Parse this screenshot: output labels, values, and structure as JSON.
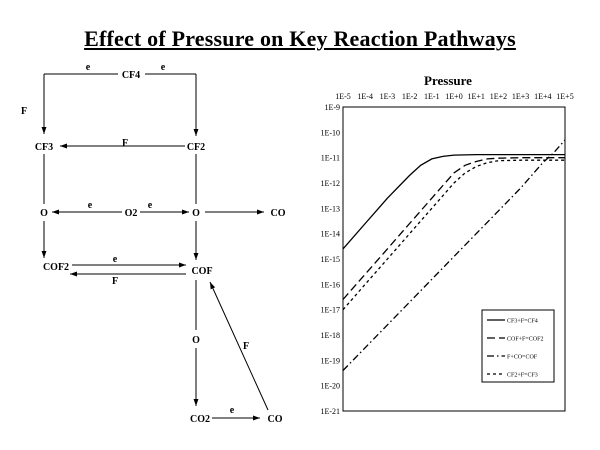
{
  "title": "Effect of Pressure on Key Reaction Pathways",
  "diagram": {
    "nodes": {
      "cf4": "CF4",
      "cf3": "CF3",
      "cf2": "CF2",
      "o_left": "O",
      "o2": "O2",
      "o_center": "O",
      "co_right": "CO",
      "cof2": "COF2",
      "cof": "COF",
      "o_lower": "O",
      "co2": "CO2",
      "co_bottom": "CO"
    },
    "edge_labels": {
      "cf4_left_e": "e",
      "cf4_right_e": "e",
      "left_f": "F",
      "cf2_cf3_f": "F",
      "o2_left_e": "e",
      "o2_right_e": "e",
      "cof2_cof_e": "e",
      "cof_cof2_f": "F",
      "co_cof_f": "F",
      "co2_co_e": "e"
    }
  },
  "chart_data": {
    "type": "line",
    "title": "Pressure",
    "x_ticks": [
      "1E-5",
      "1E-4",
      "1E-3",
      "1E-2",
      "1E-1",
      "1E+0",
      "1E+1",
      "1E+2",
      "1E+3",
      "1E+4",
      "1E+5"
    ],
    "y_ticks": [
      "1E-9",
      "1E-10",
      "1E-11",
      "1E-12",
      "1E-13",
      "1E-14",
      "1E-15",
      "1E-16",
      "1E-17",
      "1E-18",
      "1E-19",
      "1E-20",
      "1E-21"
    ],
    "xlim_log10": [
      -5,
      5
    ],
    "ylim_log10": [
      -21,
      -9
    ],
    "x_scale": "log",
    "y_scale": "log",
    "grid": false,
    "legend_position": "bottom-right",
    "series": [
      {
        "name": "CF3+F=CF4",
        "dash": "solid",
        "points": [
          [
            -5,
            -14.6
          ],
          [
            -4,
            -13.6
          ],
          [
            -3,
            -12.6
          ],
          [
            -2,
            -11.7
          ],
          [
            -1.5,
            -11.3
          ],
          [
            -1,
            -11.05
          ],
          [
            -0.5,
            -10.95
          ],
          [
            0,
            -10.9
          ],
          [
            1,
            -10.88
          ],
          [
            3,
            -10.88
          ],
          [
            5,
            -10.88
          ]
        ]
      },
      {
        "name": "COF+F=COF2",
        "dash": "long",
        "points": [
          [
            -5,
            -16.6
          ],
          [
            -4,
            -15.6
          ],
          [
            -3,
            -14.6
          ],
          [
            -2,
            -13.6
          ],
          [
            -1,
            -12.6
          ],
          [
            -0.5,
            -12.1
          ],
          [
            0,
            -11.6
          ],
          [
            0.5,
            -11.3
          ],
          [
            1,
            -11.15
          ],
          [
            1.5,
            -11.05
          ],
          [
            2,
            -11.02
          ],
          [
            3,
            -11.0
          ],
          [
            5,
            -11.0
          ]
        ]
      },
      {
        "name": "F+CO=COF",
        "dash": "dash-dot",
        "points": [
          [
            -5,
            -19.4
          ],
          [
            -4,
            -18.5
          ],
          [
            -3,
            -17.6
          ],
          [
            -2,
            -16.7
          ],
          [
            -1,
            -15.8
          ],
          [
            0,
            -14.9
          ],
          [
            1,
            -14.0
          ],
          [
            2,
            -13.1
          ],
          [
            3,
            -12.2
          ],
          [
            3.5,
            -11.7
          ],
          [
            4,
            -11.2
          ],
          [
            4.5,
            -10.8
          ],
          [
            5,
            -10.3
          ]
        ]
      },
      {
        "name": "CF2+F=CF3",
        "dash": "short",
        "points": [
          [
            -5,
            -17.0
          ],
          [
            -4,
            -16.0
          ],
          [
            -3,
            -15.0
          ],
          [
            -2,
            -14.0
          ],
          [
            -1,
            -13.0
          ],
          [
            -0.5,
            -12.5
          ],
          [
            0,
            -12.0
          ],
          [
            0.5,
            -11.6
          ],
          [
            1,
            -11.35
          ],
          [
            1.5,
            -11.2
          ],
          [
            2,
            -11.12
          ],
          [
            3,
            -11.1
          ],
          [
            5,
            -11.1
          ]
        ]
      }
    ]
  }
}
